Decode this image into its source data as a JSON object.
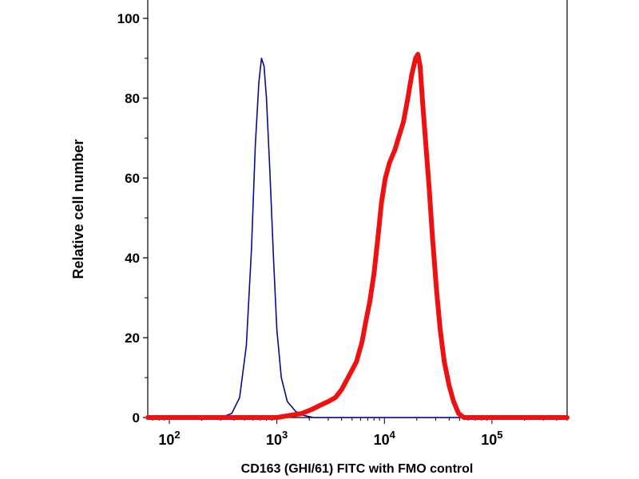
{
  "chart_data": {
    "type": "line",
    "title": "",
    "xlabel": "CD163 (GHI/61) FITC with FMO control",
    "ylabel": "Relative cell number",
    "x_scale": "log",
    "xlim": [
      63,
      500000
    ],
    "ylim": [
      0,
      105
    ],
    "y_ticks": [
      0,
      20,
      40,
      60,
      80,
      100
    ],
    "x_ticks": [
      {
        "value": 100,
        "base": "10",
        "exp": "2"
      },
      {
        "value": 1000,
        "base": "10",
        "exp": "3"
      },
      {
        "value": 10000,
        "base": "10",
        "exp": "4"
      },
      {
        "value": 100000,
        "base": "10",
        "exp": "5"
      }
    ],
    "series": [
      {
        "color": "#0a0a8c",
        "line_width": "thin",
        "points": [
          [
            63,
            0
          ],
          [
            300,
            0
          ],
          [
            380,
            1
          ],
          [
            450,
            5
          ],
          [
            520,
            18
          ],
          [
            580,
            42
          ],
          [
            630,
            68
          ],
          [
            680,
            84
          ],
          [
            720,
            90
          ],
          [
            760,
            88
          ],
          [
            800,
            80
          ],
          [
            860,
            62
          ],
          [
            930,
            40
          ],
          [
            1000,
            22
          ],
          [
            1100,
            10
          ],
          [
            1250,
            4
          ],
          [
            1500,
            1.5
          ],
          [
            1800,
            0.5
          ],
          [
            2200,
            0
          ],
          [
            500000,
            0
          ]
        ]
      },
      {
        "color": "#ee1111",
        "line_width": "thick",
        "points": [
          [
            63,
            0
          ],
          [
            1000,
            0
          ],
          [
            1300,
            0.5
          ],
          [
            1700,
            1
          ],
          [
            2100,
            2
          ],
          [
            2500,
            3
          ],
          [
            3000,
            4
          ],
          [
            3500,
            5
          ],
          [
            4000,
            7
          ],
          [
            4800,
            11
          ],
          [
            5500,
            14
          ],
          [
            6200,
            19
          ],
          [
            6700,
            24
          ],
          [
            7300,
            29
          ],
          [
            8000,
            36
          ],
          [
            8700,
            45
          ],
          [
            9400,
            54
          ],
          [
            10200,
            60
          ],
          [
            11200,
            64
          ],
          [
            12500,
            67
          ],
          [
            13500,
            70
          ],
          [
            15000,
            74
          ],
          [
            16500,
            80
          ],
          [
            18000,
            86
          ],
          [
            19500,
            90
          ],
          [
            20500,
            91
          ],
          [
            21500,
            88
          ],
          [
            22500,
            80
          ],
          [
            24000,
            70
          ],
          [
            26000,
            58
          ],
          [
            28000,
            45
          ],
          [
            30500,
            32
          ],
          [
            33000,
            22
          ],
          [
            36000,
            14
          ],
          [
            40000,
            8
          ],
          [
            44000,
            4
          ],
          [
            49000,
            1
          ],
          [
            55000,
            0
          ],
          [
            500000,
            0
          ]
        ]
      }
    ]
  }
}
